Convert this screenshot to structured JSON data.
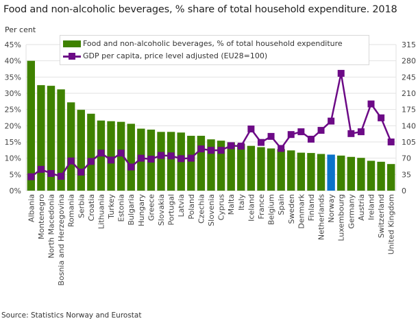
{
  "title": "Food and non-alcoholic beverages, % share of total household expenditure. 2018",
  "unit_label": "Per cent",
  "source": "Source: Statistics Norway and Eurostat",
  "legend": {
    "bar_label": "Food and non-alcoholic beverages, % of total household expenditure",
    "line_label": "GDP per capita, price level adjusted (EU28=100)"
  },
  "colors": {
    "bar": "#3f8200",
    "highlight_bar": "#0b72c9",
    "line": "#6c0a86",
    "grid": "#e2e2e2"
  },
  "chart_data": {
    "type": "bar",
    "title": "Food and non-alcoholic beverages, % share of total household expenditure. 2018",
    "xlabel": "",
    "ylabel": "Per cent",
    "y2label": "",
    "ylim": [
      0,
      45
    ],
    "y2lim": [
      0,
      315
    ],
    "yticks": [
      "0%",
      "5%",
      "10%",
      "15%",
      "20%",
      "25%",
      "30%",
      "35%",
      "40%",
      "45%"
    ],
    "y2ticks": [
      "0",
      "35",
      "70",
      "105",
      "140",
      "175",
      "210",
      "245",
      "280",
      "315"
    ],
    "grid": true,
    "legend_position": "top",
    "highlight_category": "Norway",
    "categories": [
      "Albania",
      "Montenegro",
      "North Macedonia",
      "Bosnia and Herzegovina",
      "Romania",
      "Serbia",
      "Croatia",
      "Lithuania",
      "Turkey",
      "Estonia",
      "Bulgaria",
      "Hungary",
      "Greece",
      "Slovakia",
      "Portugal",
      "Latvia",
      "Poland",
      "Czechia",
      "Slovenia",
      "Cyprus",
      "Malta",
      "Italy",
      "Iceland",
      "France",
      "Belgium",
      "Spain",
      "Sweden",
      "Denmark",
      "Finland",
      "Netherlands",
      "Norway",
      "Luxembourg",
      "Germany",
      "Austria",
      "Ireland",
      "Switzerland",
      "United Kingdom"
    ],
    "series": [
      {
        "name": "Food and non-alcoholic beverages, % of total household expenditure",
        "type": "bar",
        "axis": "left",
        "values": [
          40.0,
          32.5,
          32.3,
          31.2,
          27.2,
          24.9,
          23.7,
          21.6,
          21.4,
          21.2,
          20.6,
          19.1,
          18.8,
          18.1,
          18.1,
          17.9,
          16.9,
          16.9,
          15.8,
          15.4,
          14.9,
          14.4,
          13.8,
          13.4,
          13.0,
          12.8,
          12.4,
          11.7,
          11.6,
          11.3,
          11.1,
          10.8,
          10.4,
          10.1,
          9.2,
          8.9,
          8.2
        ]
      },
      {
        "name": "GDP per capita, price level adjusted (EU28=100)",
        "type": "line",
        "axis": "right",
        "values": [
          30,
          46,
          37,
          31,
          64,
          40,
          63,
          81,
          66,
          81,
          51,
          70,
          68,
          76,
          75,
          69,
          70,
          90,
          87,
          87,
          97,
          96,
          133,
          104,
          117,
          91,
          121,
          127,
          111,
          130,
          150,
          253,
          123,
          127,
          187,
          157,
          105
        ]
      }
    ]
  }
}
